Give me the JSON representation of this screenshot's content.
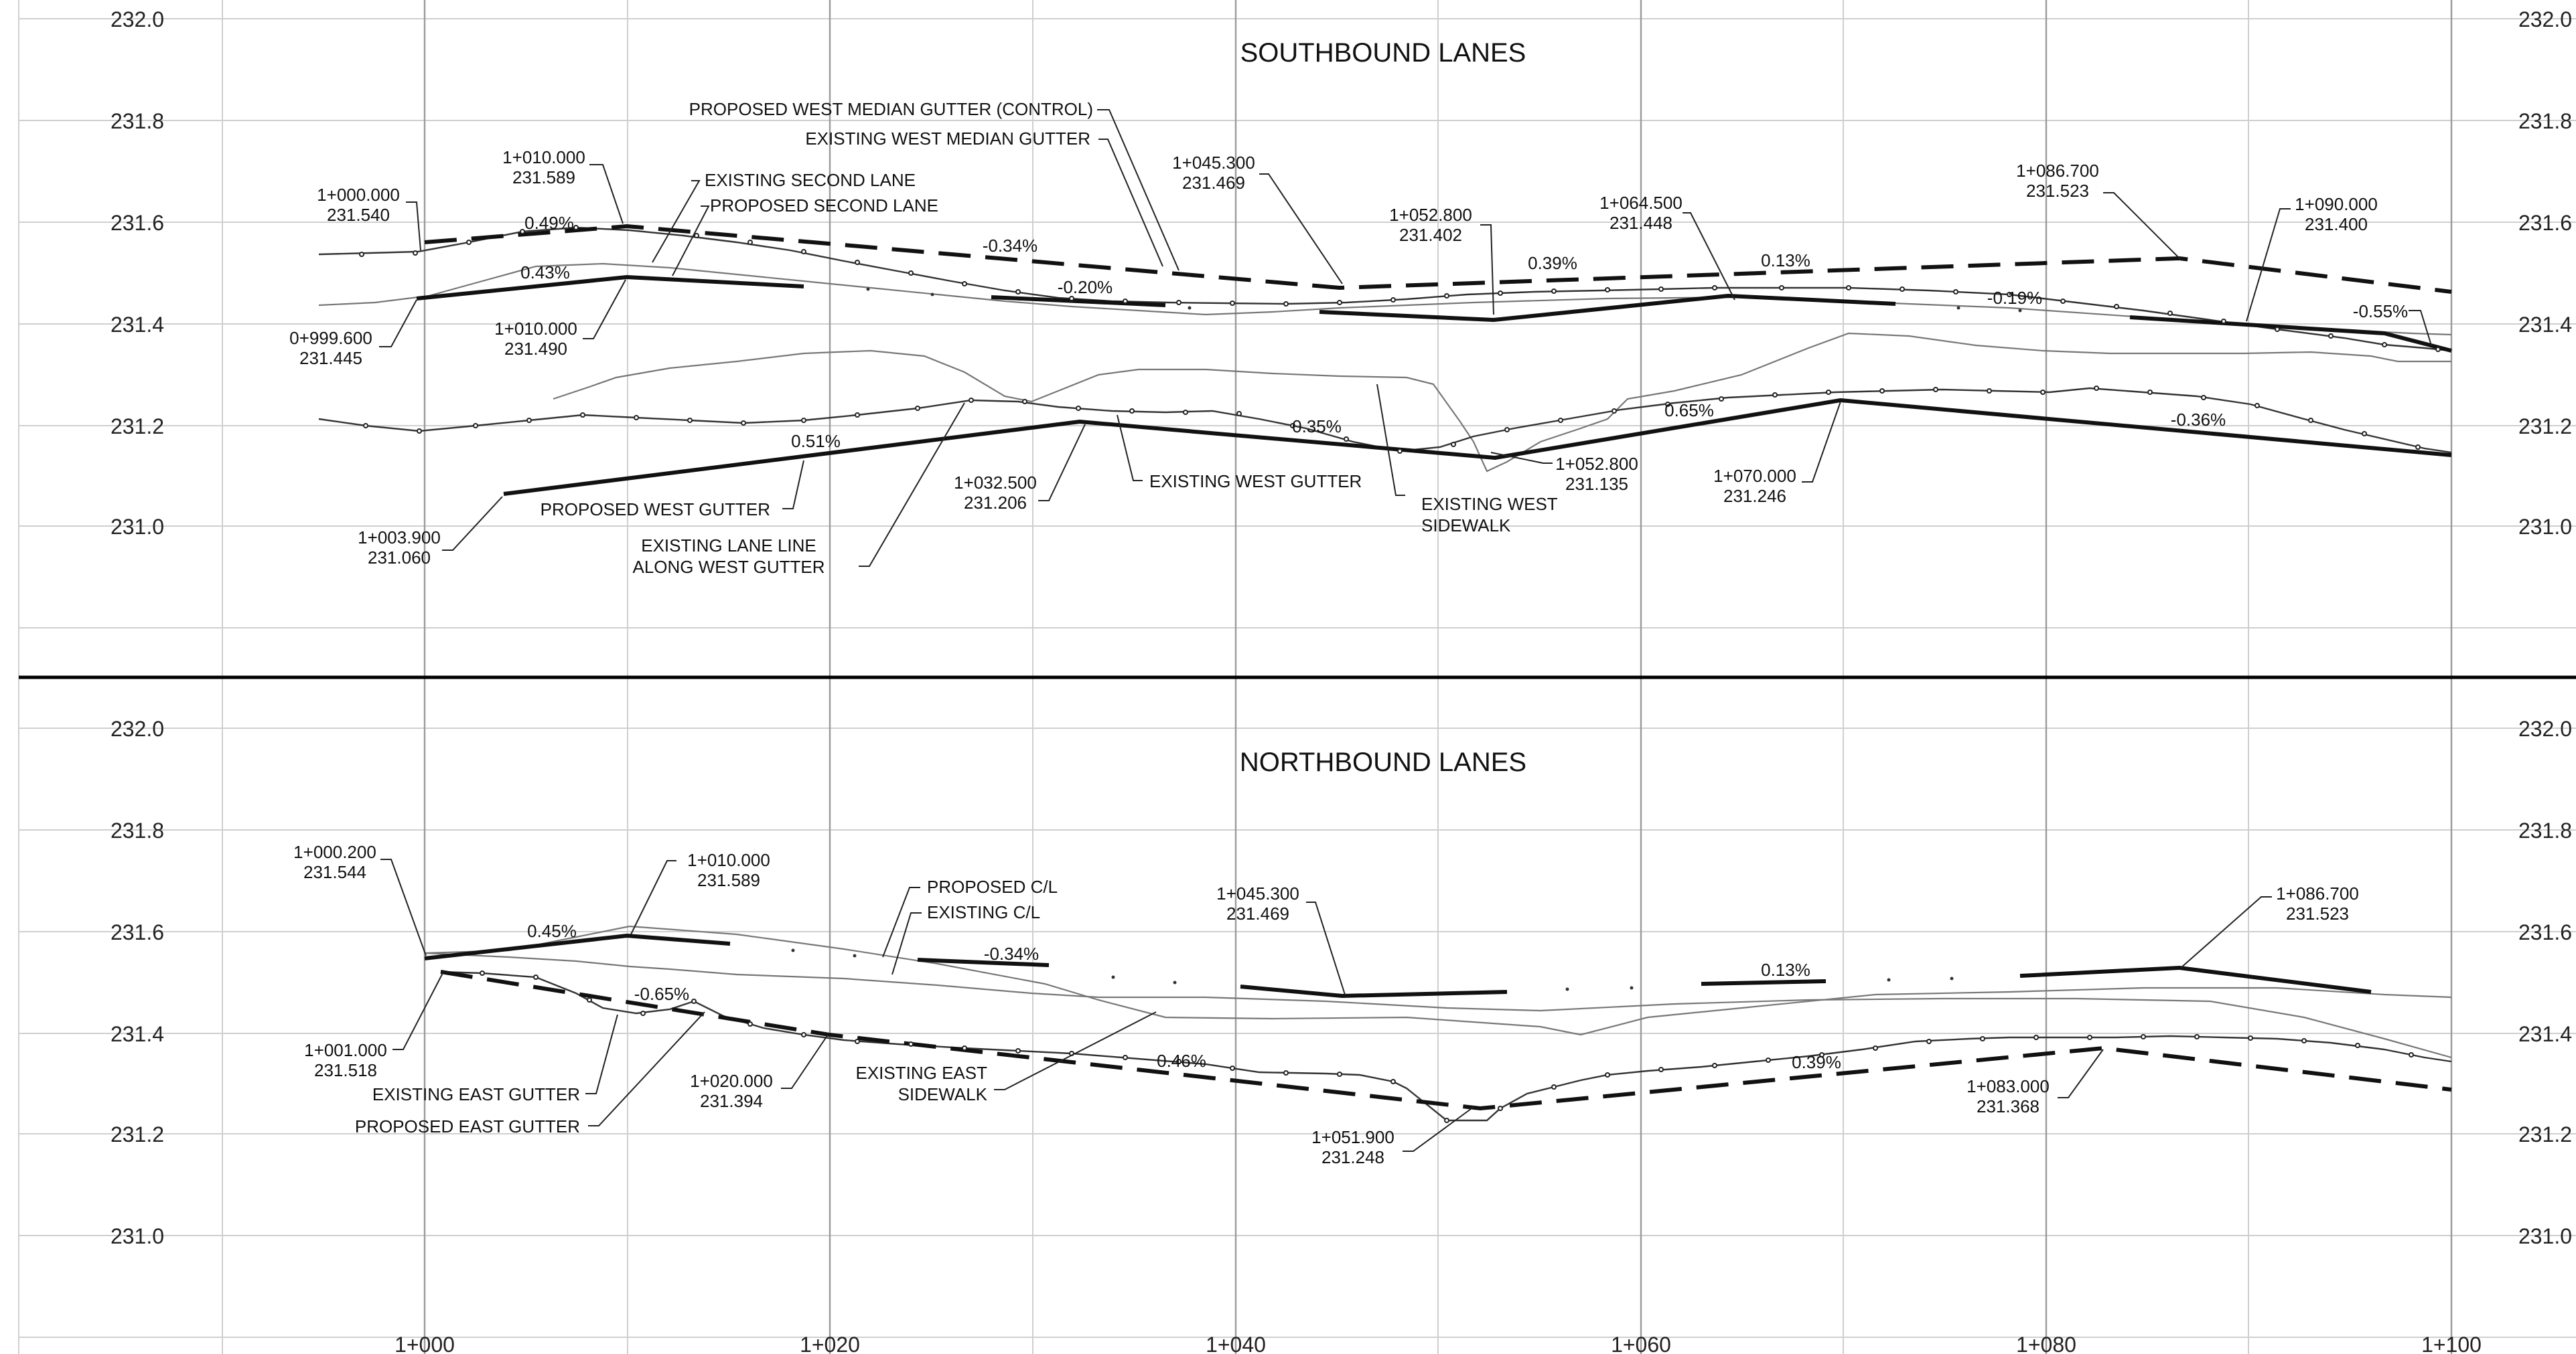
{
  "panels": [
    {
      "id": "southbound",
      "title": "SOUTHBOUND LANES",
      "y_ticks": [
        "232.0",
        "231.8",
        "231.6",
        "231.4",
        "231.2",
        "231.0"
      ],
      "slopes": [
        "0.49%",
        "0.43%",
        "-0.34%",
        "-0.20%",
        "0.39%",
        "0.13%",
        "-0.19%",
        "-0.55%",
        "0.51%",
        "0.35%",
        "0.65%",
        "-0.36%"
      ],
      "callouts": [
        {
          "lines": [
            "1+000.000",
            "231.540"
          ]
        },
        {
          "lines": [
            "1+010.000",
            "231.589"
          ]
        },
        {
          "lines": [
            "PROPOSED WEST MEDIAN GUTTER (CONTROL)"
          ]
        },
        {
          "lines": [
            "EXISTING WEST MEDIAN GUTTER"
          ]
        },
        {
          "lines": [
            "EXISTING SECOND LANE"
          ]
        },
        {
          "lines": [
            "PROPOSED SECOND LANE"
          ]
        },
        {
          "lines": [
            "1+045.300",
            "231.469"
          ]
        },
        {
          "lines": [
            "1+052.800",
            "231.402"
          ]
        },
        {
          "lines": [
            "1+064.500",
            "231.448"
          ]
        },
        {
          "lines": [
            "1+086.700",
            "231.523"
          ]
        },
        {
          "lines": [
            "1+090.000",
            "231.400"
          ]
        },
        {
          "lines": [
            "0+999.600",
            "231.445"
          ]
        },
        {
          "lines": [
            "1+010.000",
            "231.490"
          ]
        },
        {
          "lines": [
            "1+003.900",
            "231.060"
          ]
        },
        {
          "lines": [
            "PROPOSED WEST GUTTER"
          ]
        },
        {
          "lines": [
            "EXISTING LANE LINE",
            "ALONG WEST GUTTER"
          ]
        },
        {
          "lines": [
            "1+032.500",
            "231.206"
          ]
        },
        {
          "lines": [
            "EXISTING  WEST GUTTER"
          ]
        },
        {
          "lines": [
            "EXISTING WEST",
            "SIDEWALK"
          ]
        },
        {
          "lines": [
            "1+052.800",
            "231.135"
          ]
        },
        {
          "lines": [
            "1+070.000",
            "231.246"
          ]
        }
      ]
    },
    {
      "id": "northbound",
      "title": "NORTHBOUND LANES",
      "y_ticks": [
        "232.0",
        "231.8",
        "231.6",
        "231.4",
        "231.2",
        "231.0"
      ],
      "slopes": [
        "0.45%",
        "-0.34%",
        "0.13%",
        "-0.65%",
        "0.46%",
        "0.39%"
      ],
      "callouts": [
        {
          "lines": [
            "1+000.200",
            "231.544"
          ]
        },
        {
          "lines": [
            "1+010.000",
            "231.589"
          ]
        },
        {
          "lines": [
            "PROPOSED C/L"
          ]
        },
        {
          "lines": [
            "EXISTING C/L"
          ]
        },
        {
          "lines": [
            "1+045.300",
            "231.469"
          ]
        },
        {
          "lines": [
            "1+086.700",
            "231.523"
          ]
        },
        {
          "lines": [
            "1+001.000",
            "231.518"
          ]
        },
        {
          "lines": [
            "EXISTING EAST GUTTER"
          ]
        },
        {
          "lines": [
            "PROPOSED EAST GUTTER"
          ]
        },
        {
          "lines": [
            "1+020.000",
            "231.394"
          ]
        },
        {
          "lines": [
            "EXISTING EAST",
            "SIDEWALK"
          ]
        },
        {
          "lines": [
            "1+051.900",
            "231.248"
          ]
        },
        {
          "lines": [
            "1+083.000",
            "231.368"
          ]
        }
      ]
    }
  ],
  "x_ticks": [
    "1+000",
    "1+020",
    "1+040",
    "1+060",
    "1+080",
    "1+100"
  ]
}
